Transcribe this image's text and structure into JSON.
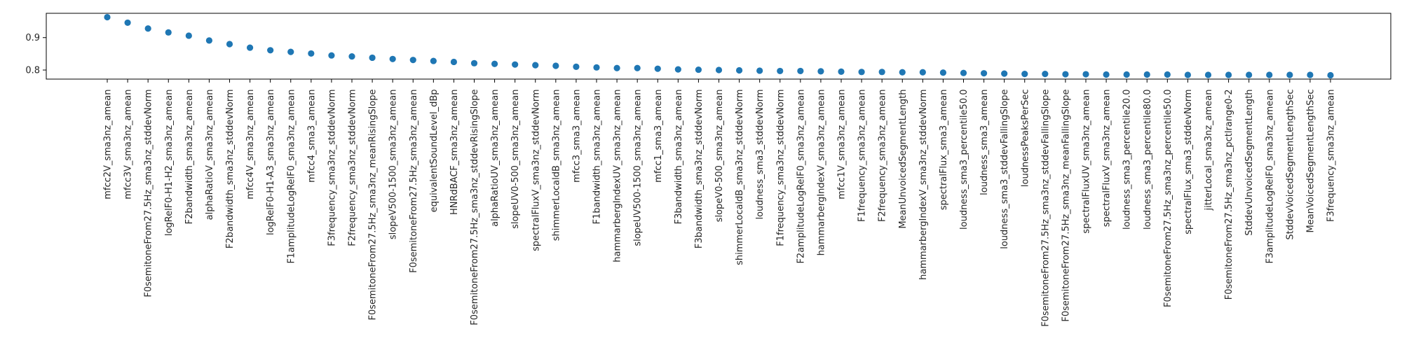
{
  "chart_data": {
    "type": "scatter",
    "title": "",
    "xlabel": "",
    "ylabel": "",
    "ylim": [
      0.772,
      0.975
    ],
    "yticks": [
      {
        "value": 0.8,
        "label": "0.8"
      },
      {
        "value": 0.9,
        "label": "0.9"
      }
    ],
    "grid": false,
    "legend": "none",
    "marker_color": "#1f77b4",
    "categories": [
      "mfcc2V_sma3nz_amean",
      "mfcc3V_sma3nz_amean",
      "F0semitoneFrom27.5Hz_sma3nz_stddevNorm",
      "logRelF0-H1-H2_sma3nz_amean",
      "F2bandwidth_sma3nz_amean",
      "alphaRatioV_sma3nz_amean",
      "F2bandwidth_sma3nz_stddevNorm",
      "mfcc4V_sma3nz_amean",
      "logRelF0-H1-A3_sma3nz_amean",
      "F1amplitudeLogRelF0_sma3nz_amean",
      "mfcc4_sma3_amean",
      "F3frequency_sma3nz_stddevNorm",
      "F2frequency_sma3nz_stddevNorm",
      "F0semitoneFrom27.5Hz_sma3nz_meanRisingSlope",
      "slopeV500-1500_sma3nz_amean",
      "F0semitoneFrom27.5Hz_sma3nz_amean",
      "equivalentSoundLevel_dBp",
      "HNRdBACF_sma3nz_amean",
      "F0semitoneFrom27.5Hz_sma3nz_stddevRisingSlope",
      "alphaRatioUV_sma3nz_amean",
      "slopeUV0-500_sma3nz_amean",
      "spectralFluxV_sma3nz_stddevNorm",
      "shimmerLocaldB_sma3nz_amean",
      "mfcc3_sma3_amean",
      "F1bandwidth_sma3nz_amean",
      "hammarbergIndexUV_sma3nz_amean",
      "slopeUV500-1500_sma3nz_amean",
      "mfcc1_sma3_amean",
      "F3bandwidth_sma3nz_amean",
      "F3bandwidth_sma3nz_stddevNorm",
      "slopeV0-500_sma3nz_amean",
      "shimmerLocaldB_sma3nz_stddevNorm",
      "loudness_sma3_stddevNorm",
      "F1frequency_sma3nz_stddevNorm",
      "F2amplitudeLogRelF0_sma3nz_amean",
      "hammarbergIndexV_sma3nz_amean",
      "mfcc1V_sma3nz_amean",
      "F1frequency_sma3nz_amean",
      "F2frequency_sma3nz_amean",
      "MeanUnvoicedSegmentLength",
      "hammarbergIndexV_sma3nz_stddevNorm",
      "spectralFlux_sma3_amean",
      "loudness_sma3_percentile50.0",
      "loudness_sma3_amean",
      "loudness_sma3_stddevFallingSlope",
      "loudnessPeaksPerSec",
      "F0semitoneFrom27.5Hz_sma3nz_stddevFallingSlope",
      "F0semitoneFrom27.5Hz_sma3nz_meanFallingSlope",
      "spectralFluxUV_sma3nz_amean",
      "spectralFluxV_sma3nz_amean",
      "loudness_sma3_percentile20.0",
      "loudness_sma3_percentile80.0",
      "F0semitoneFrom27.5Hz_sma3nz_percentile50.0",
      "spectralFlux_sma3_stddevNorm",
      "jitterLocal_sma3nz_amean",
      "F0semitoneFrom27.5Hz_sma3nz_pctlrange0-2",
      "StddevUnvoicedSegmentLength",
      "F3amplitudeLogRelF0_sma3nz_amean",
      "StddevVoicedSegmentLengthSec",
      "MeanVoicedSegmentLengthSec",
      "F3frequency_sma3nz_amean"
    ],
    "values": [
      0.963,
      0.946,
      0.928,
      0.916,
      0.906,
      0.891,
      0.88,
      0.869,
      0.861,
      0.856,
      0.851,
      0.845,
      0.842,
      0.838,
      0.834,
      0.831,
      0.828,
      0.825,
      0.821,
      0.819,
      0.817,
      0.815,
      0.813,
      0.81,
      0.808,
      0.806,
      0.806,
      0.804,
      0.802,
      0.801,
      0.8,
      0.799,
      0.798,
      0.797,
      0.797,
      0.796,
      0.795,
      0.794,
      0.794,
      0.793,
      0.793,
      0.792,
      0.791,
      0.79,
      0.789,
      0.788,
      0.788,
      0.787,
      0.787,
      0.786,
      0.786,
      0.786,
      0.786,
      0.785,
      0.785,
      0.785,
      0.785,
      0.785,
      0.785,
      0.785,
      0.784
    ]
  }
}
